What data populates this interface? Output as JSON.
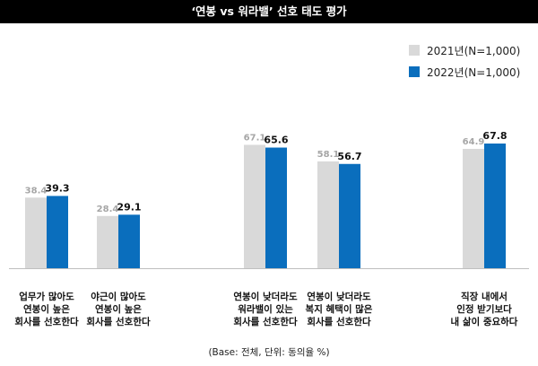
{
  "chart_data": {
    "type": "bar",
    "title": "‘연봉 vs 워라밸’ 선호 태도 평가",
    "categories": [
      [
        "업무가 많아도",
        "연봉이 높은",
        "회사를 선호한다"
      ],
      [
        "야근이 많아도",
        "연봉이 높은",
        "회사를 선호한다"
      ],
      [
        "연봉이 낮더라도",
        "워라밸이 있는",
        "회사를 선호한다"
      ],
      [
        "연봉이 낮더라도",
        "복지 혜택이 많은",
        "회사를 선호한다"
      ],
      [
        "직장 내에서",
        "인정 받기보다",
        "내 삶이 중요하다"
      ]
    ],
    "series": [
      {
        "name": "2021년(N=1,000)",
        "values": [
          38.4,
          28.4,
          67.1,
          58.1,
          64.9
        ],
        "color": "#d9d9d9",
        "label_color": "#a6a6a6"
      },
      {
        "name": "2022년(N=1,000)",
        "values": [
          39.3,
          29.1,
          65.6,
          56.7,
          67.8
        ],
        "color": "#0a6ebd",
        "label_color": "#111111"
      }
    ],
    "ylim": [
      0,
      100
    ],
    "legend_position": "top-right",
    "grid": false
  },
  "footnote": "(Base: 전체, 단위: 동의율 %)"
}
